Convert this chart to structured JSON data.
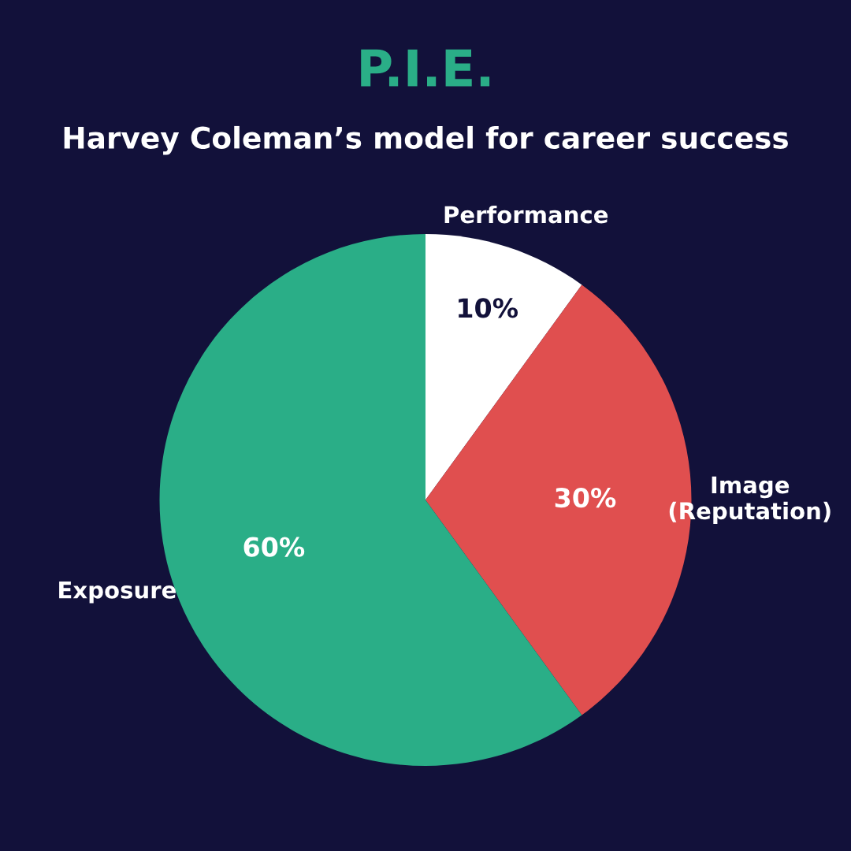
{
  "chart_data": {
    "type": "pie",
    "title": "P.I.E.",
    "subtitle": "Harvey Coleman’s model for career success",
    "categories": [
      "Performance",
      "Image\n(Reputation)",
      "Exposure"
    ],
    "values": [
      10,
      30,
      60
    ],
    "colors": [
      "#ffffff",
      "#e04f4f",
      "#2aae87"
    ],
    "value_labels": [
      "10%",
      "30%",
      "60%"
    ]
  }
}
